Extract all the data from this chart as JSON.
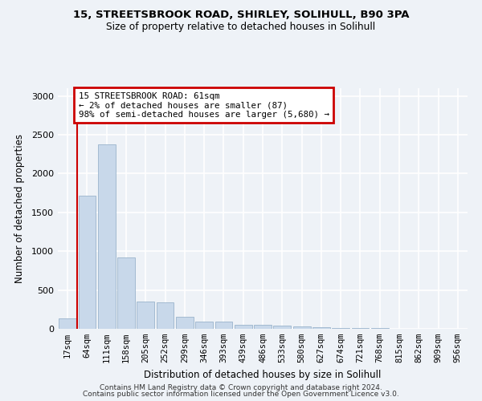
{
  "title1": "15, STREETSBROOK ROAD, SHIRLEY, SOLIHULL, B90 3PA",
  "title2": "Size of property relative to detached houses in Solihull",
  "xlabel": "Distribution of detached houses by size in Solihull",
  "ylabel": "Number of detached properties",
  "bar_color": "#c8d8ea",
  "bar_edge_color": "#9ab4cc",
  "bin_labels": [
    "17sqm",
    "64sqm",
    "111sqm",
    "158sqm",
    "205sqm",
    "252sqm",
    "299sqm",
    "346sqm",
    "393sqm",
    "439sqm",
    "486sqm",
    "533sqm",
    "580sqm",
    "627sqm",
    "674sqm",
    "721sqm",
    "768sqm",
    "815sqm",
    "862sqm",
    "909sqm",
    "956sqm"
  ],
  "bar_heights": [
    130,
    1720,
    2380,
    920,
    350,
    340,
    160,
    90,
    90,
    55,
    55,
    40,
    30,
    20,
    15,
    10,
    7,
    5,
    3,
    2,
    1
  ],
  "ylim": [
    0,
    3100
  ],
  "yticks": [
    0,
    500,
    1000,
    1500,
    2000,
    2500,
    3000
  ],
  "vline_x": 0.5,
  "annotation_text": "15 STREETSBROOK ROAD: 61sqm\n← 2% of detached houses are smaller (87)\n98% of semi-detached houses are larger (5,680) →",
  "annotation_box_color": "#ffffff",
  "annotation_border_color": "#cc0000",
  "vline_color": "#cc0000",
  "footer1": "Contains HM Land Registry data © Crown copyright and database right 2024.",
  "footer2": "Contains public sector information licensed under the Open Government Licence v3.0.",
  "background_color": "#eef2f7",
  "grid_color": "#ffffff"
}
